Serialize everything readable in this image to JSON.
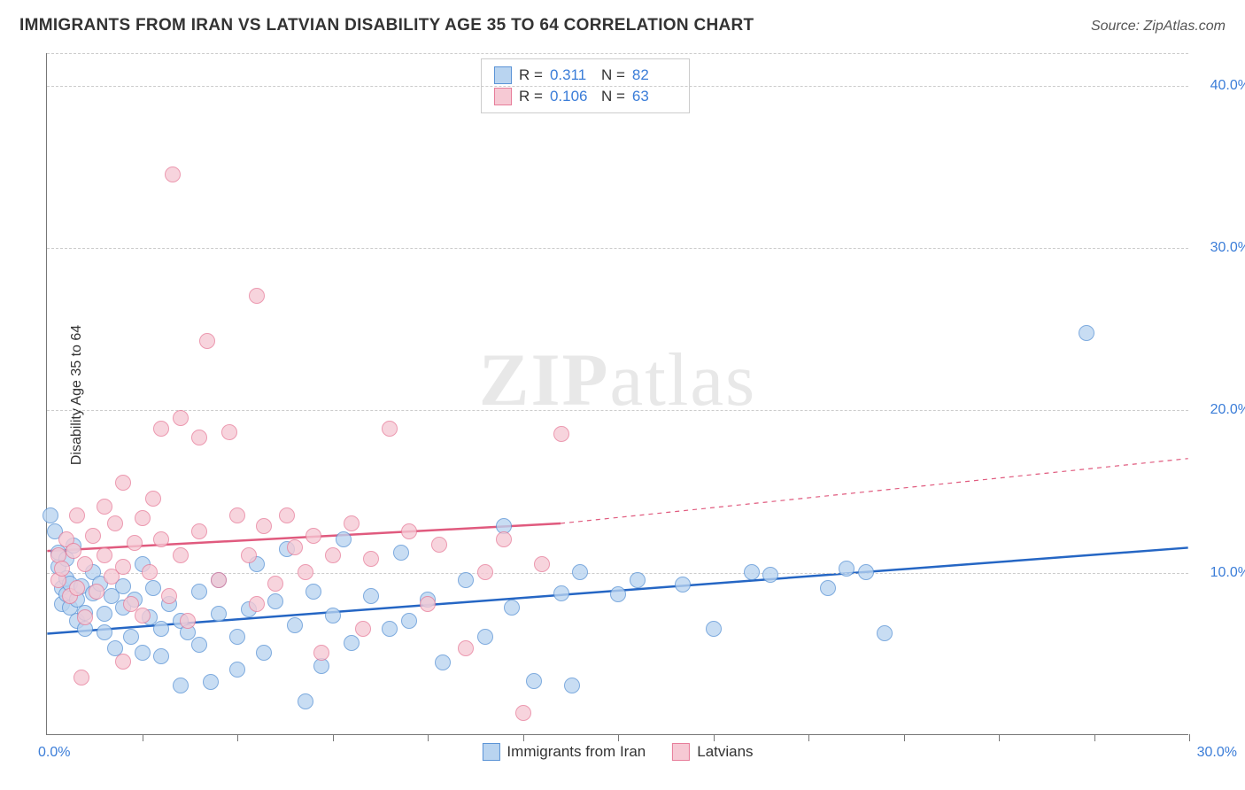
{
  "title": "IMMIGRANTS FROM IRAN VS LATVIAN DISABILITY AGE 35 TO 64 CORRELATION CHART",
  "source": "Source: ZipAtlas.com",
  "y_axis_label": "Disability Age 35 to 64",
  "watermark_bold": "ZIP",
  "watermark_rest": "atlas",
  "chart": {
    "type": "scatter-with-trend",
    "xlim": [
      0,
      30
    ],
    "ylim": [
      0,
      42
    ],
    "x_tick_step": 2.5,
    "y_ticks": [
      10,
      20,
      30,
      40
    ],
    "y_tick_labels": [
      "10.0%",
      "20.0%",
      "30.0%",
      "40.0%"
    ],
    "x_label_min": "0.0%",
    "x_label_max": "30.0%",
    "background_color": "#ffffff",
    "grid_color": "#cccccc",
    "axis_color": "#777777",
    "marker_radius": 9,
    "marker_stroke_width": 1.2,
    "series": [
      {
        "name": "Immigrants from Iran",
        "fill": "#b9d4f0",
        "stroke": "#5b94d6",
        "trend_color": "#2566c4",
        "trend_width": 2.5,
        "trend": {
          "x1": 0,
          "y1": 6.2,
          "x2": 30,
          "y2": 11.5
        },
        "R": "0.311",
        "N": "82",
        "points": [
          [
            0.2,
            12.5
          ],
          [
            0.3,
            10.3
          ],
          [
            0.3,
            11.2
          ],
          [
            0.4,
            9.0
          ],
          [
            0.4,
            8.0
          ],
          [
            0.5,
            10.8
          ],
          [
            0.5,
            9.6
          ],
          [
            0.5,
            8.6
          ],
          [
            0.6,
            9.3
          ],
          [
            0.6,
            7.8
          ],
          [
            0.7,
            11.6
          ],
          [
            0.8,
            8.3
          ],
          [
            0.8,
            7.0
          ],
          [
            0.9,
            9.1
          ],
          [
            1.0,
            7.5
          ],
          [
            1.0,
            6.5
          ],
          [
            1.2,
            8.7
          ],
          [
            1.2,
            10.0
          ],
          [
            1.4,
            9.3
          ],
          [
            1.5,
            7.4
          ],
          [
            1.5,
            6.3
          ],
          [
            1.7,
            8.5
          ],
          [
            1.8,
            5.3
          ],
          [
            2.0,
            7.8
          ],
          [
            2.0,
            9.1
          ],
          [
            2.2,
            6.0
          ],
          [
            2.3,
            8.3
          ],
          [
            2.5,
            10.5
          ],
          [
            2.5,
            5.0
          ],
          [
            2.7,
            7.2
          ],
          [
            2.8,
            9.0
          ],
          [
            3.0,
            6.5
          ],
          [
            3.0,
            4.8
          ],
          [
            3.2,
            8.0
          ],
          [
            3.5,
            7.0
          ],
          [
            3.5,
            3.0
          ],
          [
            3.7,
            6.3
          ],
          [
            4.0,
            8.8
          ],
          [
            4.0,
            5.5
          ],
          [
            4.3,
            3.2
          ],
          [
            4.5,
            7.4
          ],
          [
            4.5,
            9.5
          ],
          [
            5.0,
            6.0
          ],
          [
            5.0,
            4.0
          ],
          [
            5.3,
            7.7
          ],
          [
            5.5,
            10.5
          ],
          [
            5.7,
            5.0
          ],
          [
            6.0,
            8.2
          ],
          [
            6.3,
            11.4
          ],
          [
            6.5,
            6.7
          ],
          [
            6.8,
            2.0
          ],
          [
            7.0,
            8.8
          ],
          [
            7.2,
            4.2
          ],
          [
            7.5,
            7.3
          ],
          [
            7.8,
            12.0
          ],
          [
            8.0,
            5.6
          ],
          [
            8.5,
            8.5
          ],
          [
            9.0,
            6.5
          ],
          [
            9.3,
            11.2
          ],
          [
            9.5,
            7.0
          ],
          [
            10.0,
            8.3
          ],
          [
            10.4,
            4.4
          ],
          [
            11.0,
            9.5
          ],
          [
            11.5,
            6.0
          ],
          [
            12.0,
            12.8
          ],
          [
            12.2,
            7.8
          ],
          [
            12.8,
            3.3
          ],
          [
            13.5,
            8.7
          ],
          [
            13.8,
            3.0
          ],
          [
            14.0,
            10.0
          ],
          [
            15.0,
            8.6
          ],
          [
            15.5,
            9.5
          ],
          [
            16.7,
            9.2
          ],
          [
            17.5,
            6.5
          ],
          [
            18.5,
            10.0
          ],
          [
            19.0,
            9.8
          ],
          [
            20.5,
            9.0
          ],
          [
            21.0,
            10.2
          ],
          [
            21.5,
            10.0
          ],
          [
            22.0,
            6.2
          ],
          [
            27.3,
            24.7
          ],
          [
            0.1,
            13.5
          ]
        ]
      },
      {
        "name": "Latvians",
        "fill": "#f6c9d4",
        "stroke": "#e77d9a",
        "trend_color": "#e05a7e",
        "trend_width": 2.5,
        "trend": {
          "x1": 0,
          "y1": 11.3,
          "x2": 13.5,
          "y2": 13.0
        },
        "trend_dash": {
          "x1": 13.5,
          "y1": 13.0,
          "x2": 30,
          "y2": 17.0
        },
        "R": "0.106",
        "N": "63",
        "points": [
          [
            0.3,
            11.0
          ],
          [
            0.3,
            9.5
          ],
          [
            0.4,
            10.2
          ],
          [
            0.5,
            12.0
          ],
          [
            0.6,
            8.5
          ],
          [
            0.7,
            11.3
          ],
          [
            0.8,
            9.0
          ],
          [
            0.8,
            13.5
          ],
          [
            1.0,
            10.5
          ],
          [
            1.0,
            7.2
          ],
          [
            1.2,
            12.2
          ],
          [
            1.3,
            8.8
          ],
          [
            1.5,
            11.0
          ],
          [
            1.5,
            14.0
          ],
          [
            1.7,
            9.7
          ],
          [
            1.8,
            13.0
          ],
          [
            2.0,
            10.3
          ],
          [
            2.0,
            15.5
          ],
          [
            2.2,
            8.0
          ],
          [
            2.3,
            11.8
          ],
          [
            2.5,
            13.3
          ],
          [
            2.5,
            7.3
          ],
          [
            2.7,
            10.0
          ],
          [
            2.8,
            14.5
          ],
          [
            3.0,
            12.0
          ],
          [
            3.0,
            18.8
          ],
          [
            3.2,
            8.5
          ],
          [
            3.3,
            34.5
          ],
          [
            3.5,
            11.0
          ],
          [
            3.5,
            19.5
          ],
          [
            3.7,
            7.0
          ],
          [
            4.0,
            12.5
          ],
          [
            4.0,
            18.3
          ],
          [
            4.2,
            24.2
          ],
          [
            4.5,
            9.5
          ],
          [
            4.8,
            18.6
          ],
          [
            5.0,
            13.5
          ],
          [
            5.3,
            11.0
          ],
          [
            5.5,
            8.0
          ],
          [
            5.5,
            27.0
          ],
          [
            5.7,
            12.8
          ],
          [
            6.0,
            9.3
          ],
          [
            6.3,
            13.5
          ],
          [
            6.5,
            11.5
          ],
          [
            6.8,
            10.0
          ],
          [
            7.0,
            12.2
          ],
          [
            7.2,
            5.0
          ],
          [
            7.5,
            11.0
          ],
          [
            8.0,
            13.0
          ],
          [
            8.3,
            6.5
          ],
          [
            8.5,
            10.8
          ],
          [
            9.0,
            18.8
          ],
          [
            9.5,
            12.5
          ],
          [
            10.0,
            8.0
          ],
          [
            10.3,
            11.7
          ],
          [
            11.0,
            5.3
          ],
          [
            11.5,
            10.0
          ],
          [
            12.0,
            12.0
          ],
          [
            12.5,
            1.3
          ],
          [
            13.0,
            10.5
          ],
          [
            13.5,
            18.5
          ],
          [
            0.9,
            3.5
          ],
          [
            2.0,
            4.5
          ]
        ]
      }
    ]
  },
  "legend_stats_labels": {
    "R": "R =",
    "N": "N ="
  },
  "bottom_legend": [
    "Immigrants from Iran",
    "Latvians"
  ]
}
